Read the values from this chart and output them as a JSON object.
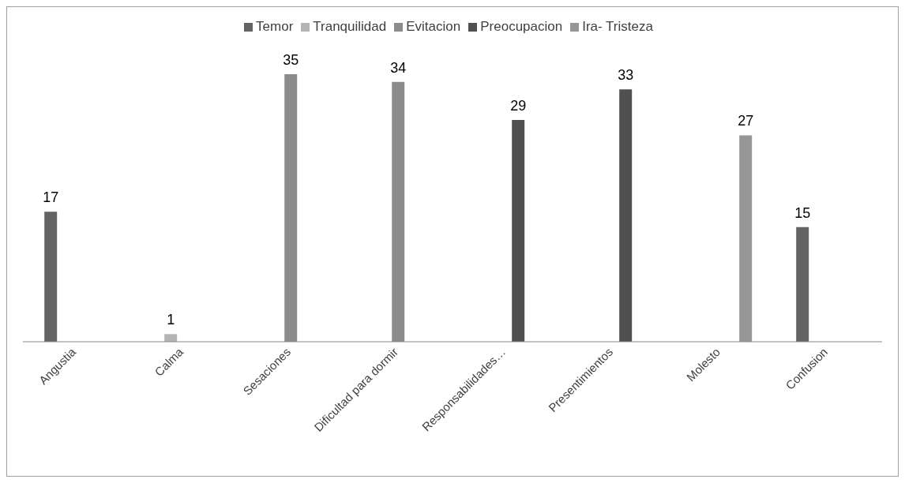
{
  "chart_data": {
    "type": "bar",
    "categories": [
      "Angustia",
      "Calma",
      "Sesaciones",
      "Dificultad para dormir",
      "Responsabilidades…",
      "Presentimientos",
      "Molesto",
      "Confusion"
    ],
    "series": [
      {
        "name": "Temor",
        "color": "#646464",
        "values": [
          17,
          null,
          null,
          null,
          null,
          null,
          null,
          15
        ]
      },
      {
        "name": "Tranquilidad",
        "color": "#b4b4b4",
        "values": [
          null,
          1,
          null,
          null,
          null,
          null,
          null,
          null
        ]
      },
      {
        "name": "Evitacion",
        "color": "#8c8c8c",
        "values": [
          null,
          null,
          35,
          34,
          null,
          null,
          null,
          null
        ]
      },
      {
        "name": "Preocupacion",
        "color": "#505050",
        "values": [
          null,
          null,
          null,
          null,
          29,
          33,
          null,
          null
        ]
      },
      {
        "name": "Ira- Tristeza",
        "color": "#969696",
        "values": [
          null,
          null,
          null,
          null,
          null,
          null,
          27,
          null
        ]
      }
    ],
    "data_labels": true,
    "legend": "top",
    "grid": false
  }
}
